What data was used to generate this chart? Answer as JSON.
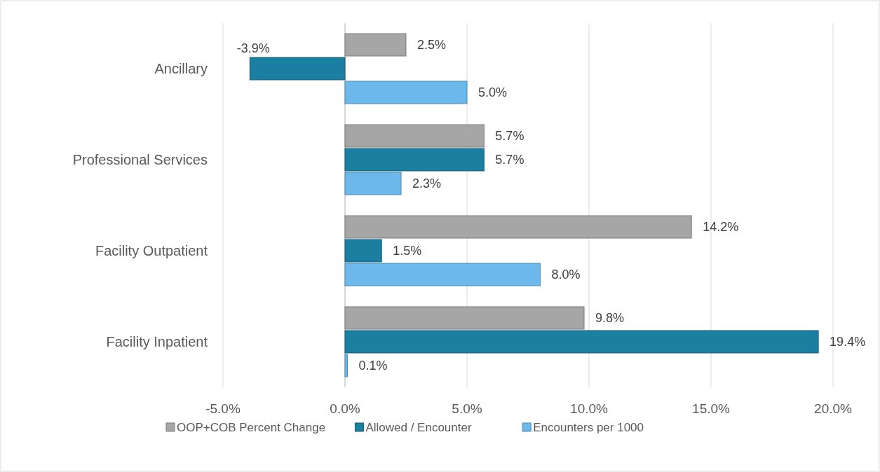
{
  "chart_data": {
    "type": "bar",
    "orientation": "horizontal",
    "categories": [
      "Ancillary",
      "Professional Services",
      "Facility Outpatient",
      "Facility Inpatient"
    ],
    "series": [
      {
        "name": "OOP+COB Percent Change",
        "color": "#a6a6a6",
        "values": [
          2.5,
          5.7,
          14.2,
          9.8
        ],
        "value_labels": [
          "2.5%",
          "5.7%",
          "14.2%",
          "9.8%"
        ]
      },
      {
        "name": "Allowed / Encounter",
        "color": "#1a7fa0",
        "values": [
          -3.9,
          5.7,
          1.5,
          19.4
        ],
        "value_labels": [
          "-3.9%",
          "5.7%",
          "1.5%",
          "19.4%"
        ]
      },
      {
        "name": "Encounters per 1000",
        "color": "#6cb8ea",
        "values": [
          5.0,
          2.3,
          8.0,
          0.1
        ],
        "value_labels": [
          "5.0%",
          "2.3%",
          "8.0%",
          "0.1%"
        ]
      }
    ],
    "xlim": [
      -5,
      20
    ],
    "xticks": [
      {
        "value": -5,
        "label": "-5.0%"
      },
      {
        "value": 0,
        "label": "0.0%"
      },
      {
        "value": 5,
        "label": "5.0%"
      },
      {
        "value": 10,
        "label": "10.0%"
      },
      {
        "value": 15,
        "label": "15.0%"
      },
      {
        "value": 20,
        "label": "20.0%"
      }
    ],
    "grid": "x",
    "legend": "bottom"
  }
}
